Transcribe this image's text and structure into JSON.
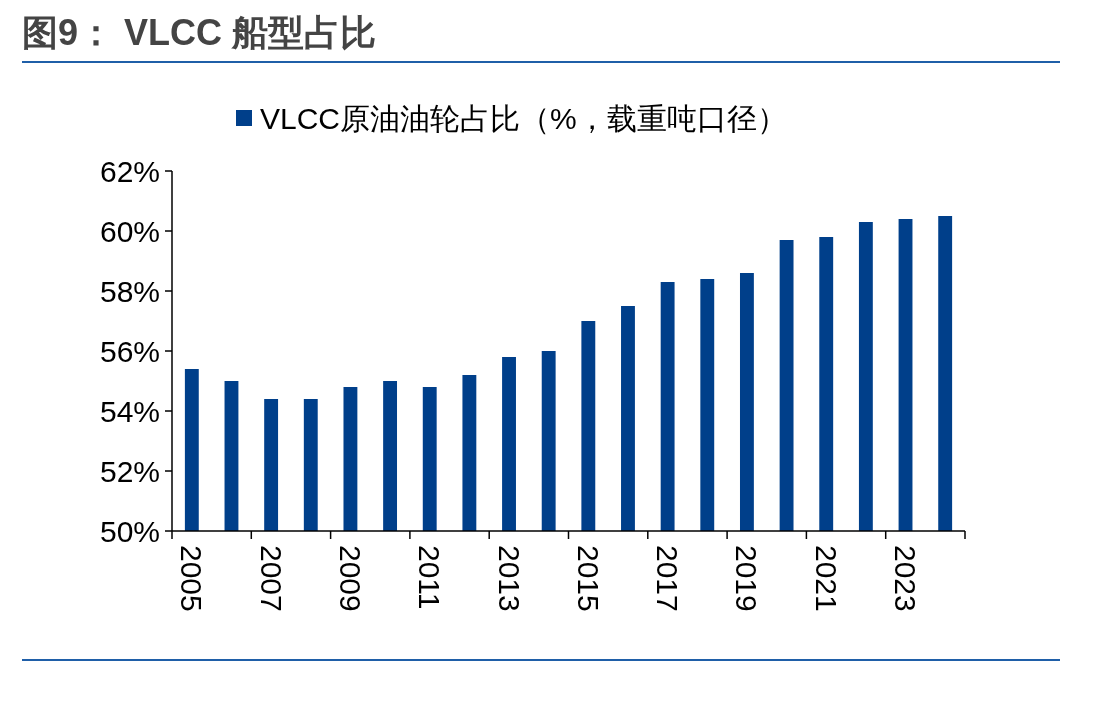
{
  "chart_data": {
    "type": "bar",
    "title": "图9： VLCC 船型占比",
    "categories": [
      "2005",
      null,
      "2007",
      null,
      "2009",
      null,
      "2011",
      null,
      "2013",
      null,
      "2015",
      null,
      "2017",
      null,
      "2019",
      null,
      "2021",
      null,
      "2023",
      null
    ],
    "series": [
      {
        "name": "VLCC原油油轮占比（%，载重吨口径）",
        "color": "#003f8a",
        "values": [
          55.4,
          55.0,
          54.4,
          54.4,
          54.8,
          55.0,
          54.8,
          55.2,
          55.8,
          56.0,
          57.0,
          57.5,
          58.3,
          58.4,
          58.6,
          59.7,
          59.8,
          60.3,
          60.4,
          60.5
        ]
      }
    ],
    "ylim": [
      50,
      62
    ],
    "yticks": [
      {
        "value": 50,
        "label": "50%"
      },
      {
        "value": 52,
        "label": "52%"
      },
      {
        "value": 54,
        "label": "54%"
      },
      {
        "value": 56,
        "label": "56%"
      },
      {
        "value": 58,
        "label": "58%"
      },
      {
        "value": 60,
        "label": "60%"
      },
      {
        "value": 62,
        "label": "62%"
      }
    ],
    "grid": false,
    "legend": "top"
  }
}
